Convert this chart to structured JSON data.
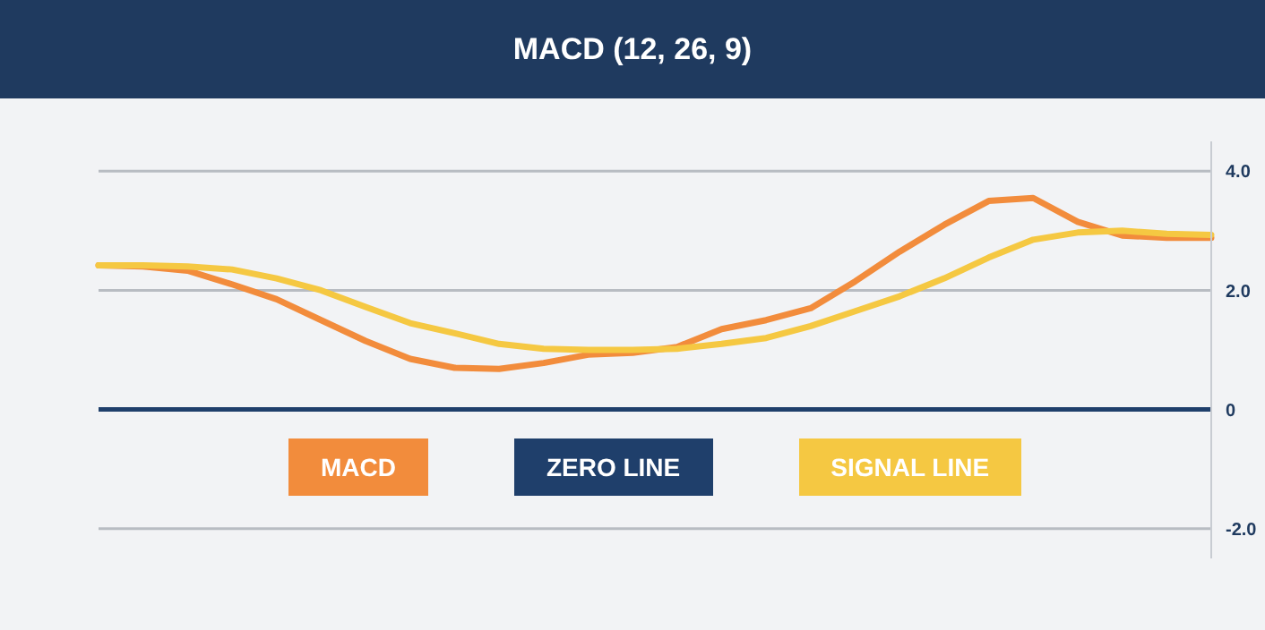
{
  "chart_data": {
    "type": "line",
    "title": "MACD (12, 26, 9)",
    "categories": [
      null,
      null,
      null,
      null,
      null,
      null,
      null,
      null,
      null,
      null,
      null,
      null,
      null,
      null,
      null,
      null,
      null,
      null,
      null,
      null,
      null,
      null,
      null,
      null,
      null,
      null
    ],
    "series": [
      {
        "name": "MACD",
        "color": "#f28c3c",
        "values": [
          2.42,
          2.4,
          2.33,
          2.1,
          1.85,
          1.5,
          1.15,
          0.85,
          0.7,
          0.68,
          0.78,
          0.92,
          0.95,
          1.05,
          1.35,
          1.5,
          1.7,
          2.15,
          2.65,
          3.1,
          3.5,
          3.55,
          3.15,
          2.92,
          2.88,
          2.88
        ]
      },
      {
        "name": "SIGNAL LINE",
        "color": "#f5c842",
        "values": [
          2.42,
          2.42,
          2.4,
          2.35,
          2.2,
          2.0,
          1.72,
          1.45,
          1.28,
          1.1,
          1.02,
          1.0,
          1.0,
          1.02,
          1.1,
          1.2,
          1.4,
          1.65,
          1.9,
          2.2,
          2.55,
          2.85,
          2.97,
          3.0,
          2.95,
          2.93
        ]
      }
    ],
    "ylim": [
      -2.5,
      4.5
    ],
    "yticks": [
      {
        "value": 4,
        "label": "4.0"
      },
      {
        "value": 2,
        "label": "2.0"
      },
      0,
      {
        "value": -2,
        "label": "-2.0"
      }
    ],
    "ref_lines": [
      {
        "axis": "y",
        "value": 0,
        "label": "ZERO LINE",
        "color": "#1f3f6b"
      }
    ],
    "grid": "y",
    "legend": "bottom",
    "tick_labels": "y",
    "marker": "none",
    "line_style": "solid"
  }
}
